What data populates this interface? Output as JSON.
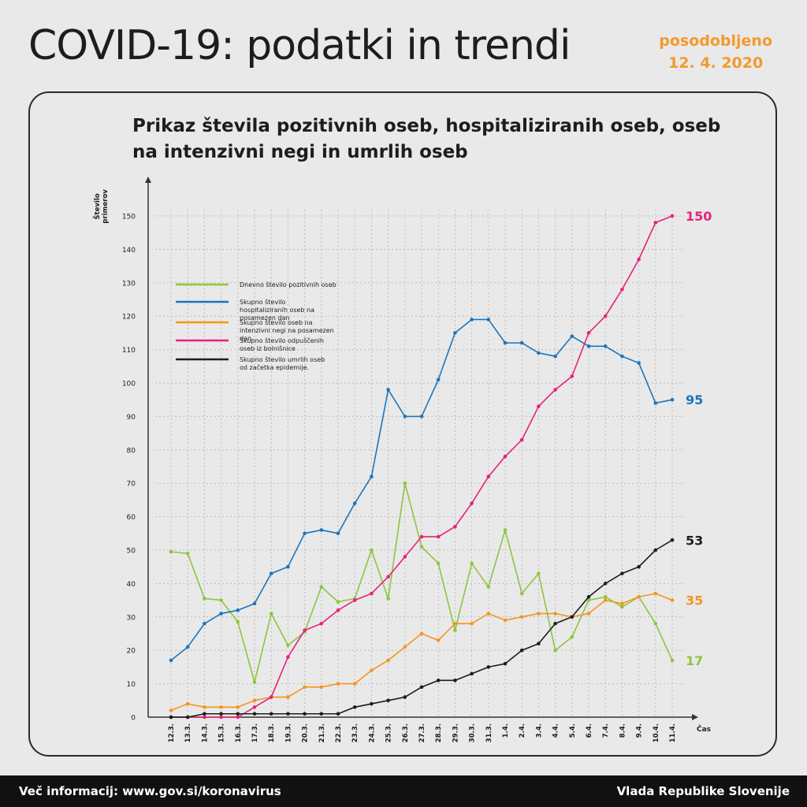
{
  "header": {
    "title": "COVID-19: podatki in trendi",
    "updated_label": "posodobljeno",
    "updated_date": "12. 4. 2020"
  },
  "footer": {
    "info": "Več informacij: www.gov.si/koronavirus",
    "org": "Vlada Republike Slovenije"
  },
  "colors": {
    "green": "#8cc63f",
    "blue": "#1c75bc",
    "orange": "#f7941d",
    "pink": "#e6227a",
    "black": "#1d1d1b"
  },
  "chart_data": {
    "type": "line",
    "title": "Prikaz števila pozitivnih oseb, hospitaliziranih oseb, oseb na intenzivni negi in umrlih oseb",
    "ylabel": "Število primerov",
    "xlabel": "Čas",
    "ylim": [
      0,
      150
    ],
    "yticks": [
      0,
      10,
      20,
      30,
      40,
      50,
      60,
      70,
      80,
      90,
      100,
      110,
      120,
      130,
      140,
      150
    ],
    "grid": true,
    "legend": "upper-left",
    "categories": [
      "12.3.",
      "13.3.",
      "14.3.",
      "15.3.",
      "16.3.",
      "17.3.",
      "18.3.",
      "19.3.",
      "20.3.",
      "21.3.",
      "22.3.",
      "23.3.",
      "24.3.",
      "25.3.",
      "26.3.",
      "27.3.",
      "28.3.",
      "29.3.",
      "30.3.",
      "31.3.",
      "1.4.",
      "2.4.",
      "3.4.",
      "4.4.",
      "5.4.",
      "6.4.",
      "7.4.",
      "8.4.",
      "9.4.",
      "10.4.",
      "11.4."
    ],
    "series": [
      {
        "name": "Dnevno število pozitivnih oseb",
        "color": "#8cc63f",
        "end_label": "17",
        "values": [
          49.5,
          49,
          35.5,
          35,
          28.5,
          10.5,
          31,
          21.5,
          25.5,
          39,
          34.5,
          35.5,
          50,
          35.5,
          70,
          51,
          46,
          26,
          46,
          39,
          56,
          37,
          43,
          20,
          24,
          35,
          36,
          33,
          36,
          28,
          17
        ]
      },
      {
        "name": "Skupno število hospitaliziranih oseb na posamezen dan",
        "color": "#1c75bc",
        "end_label": "95",
        "values": [
          17,
          21,
          28,
          31,
          32,
          34,
          43,
          45,
          55,
          56,
          55,
          64,
          72,
          98,
          90,
          90,
          101,
          115,
          119,
          119,
          112,
          112,
          109,
          108,
          114,
          111,
          111,
          108,
          106,
          94,
          95
        ]
      },
      {
        "name": "Skupno število oseb na intenzivni negi na posamezen dan.",
        "color": "#f7941d",
        "end_label": "35",
        "values": [
          2,
          4,
          3,
          3,
          3,
          5,
          6,
          6,
          9,
          9,
          10,
          10,
          14,
          17,
          21,
          25,
          23,
          28,
          28,
          31,
          29,
          30,
          31,
          31,
          30,
          31,
          35,
          34,
          36,
          37,
          35
        ]
      },
      {
        "name": "Skupno število odpuščenih oseb iz bolnišnice",
        "color": "#e6227a",
        "end_label": "150",
        "values": [
          0,
          0,
          0,
          0,
          0,
          3,
          6,
          18,
          26,
          28,
          32,
          35,
          37,
          42,
          48,
          54,
          54,
          57,
          64,
          72,
          78,
          83,
          93,
          98,
          102,
          115,
          120,
          128,
          137,
          148,
          150
        ]
      },
      {
        "name": "Skupno število umrlih oseb od začetka epidemije.",
        "color": "#1d1d1b",
        "end_label": "53",
        "values": [
          0,
          0,
          1,
          1,
          1,
          1,
          1,
          1,
          1,
          1,
          1,
          3,
          4,
          5,
          6,
          9,
          11,
          11,
          13,
          15,
          16,
          20,
          22,
          28,
          30,
          36,
          40,
          43,
          45,
          50,
          53
        ]
      }
    ]
  }
}
